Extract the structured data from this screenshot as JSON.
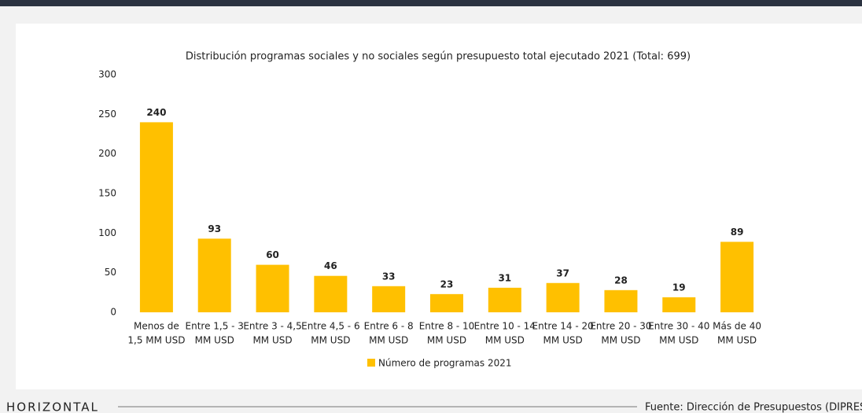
{
  "chart_data": {
    "type": "bar",
    "title": "Distribución programas sociales y no sociales según presupuesto total ejecutado 2021 (Total: 699)",
    "categories": [
      [
        "Menos de",
        "1,5 MM USD"
      ],
      [
        "Entre 1,5 - 3",
        "MM USD"
      ],
      [
        "Entre 3 - 4,5",
        "MM USD"
      ],
      [
        "Entre 4,5 - 6",
        "MM USD"
      ],
      [
        "Entre 6 - 8",
        "MM USD"
      ],
      [
        "Entre 8 - 10",
        "MM USD"
      ],
      [
        "Entre 10 - 14",
        "MM USD"
      ],
      [
        "Entre 14 - 20",
        "MM USD"
      ],
      [
        "Entre 20 - 30",
        "MM USD"
      ],
      [
        "Entre 30 - 40",
        "MM USD"
      ],
      [
        "Más de 40",
        "MM USD"
      ]
    ],
    "series": [
      {
        "name": "Número de programas 2021",
        "color": "#ffc000",
        "values": [
          240,
          93,
          60,
          46,
          33,
          23,
          31,
          37,
          28,
          19,
          89
        ]
      }
    ],
    "ylim": [
      0,
      300
    ],
    "yticks": [
      0,
      50,
      100,
      150,
      200,
      250,
      300
    ],
    "grid": false,
    "legend": "bottom"
  },
  "footer": {
    "logo": "HORIZONTAL",
    "source": "Fuente: Dirección de Presupuestos (DIPRES"
  }
}
